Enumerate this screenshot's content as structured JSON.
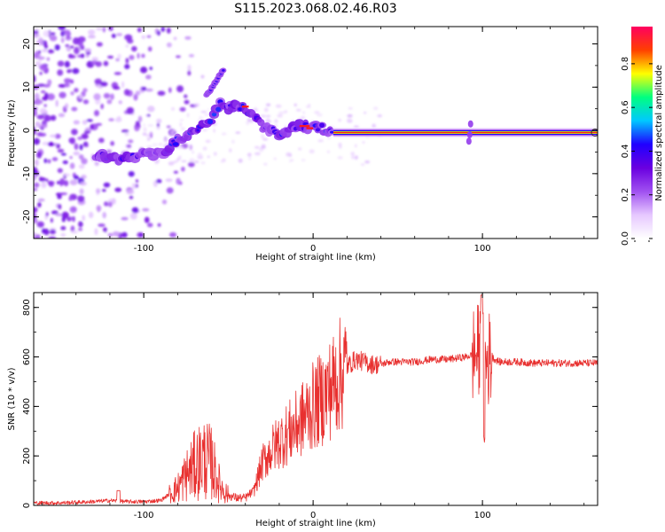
{
  "title": "S115.2023.068.02.46.R03",
  "colors": {
    "snr_line": "#e8302f",
    "ridge_core": "#ff1a1a",
    "colormap": [
      "#ffffff",
      "#e6c8ff",
      "#a050f0",
      "#6a00e0",
      "#2000ff",
      "#00c8ff",
      "#00ff80",
      "#ffff00",
      "#ff4000",
      "#ff0060"
    ]
  },
  "chart_data": [
    {
      "type": "heatmap",
      "name": "spectrogram",
      "xlabel": "Height of straight line (km)",
      "ylabel": "Frequency (Hz)",
      "xlim": [
        -165,
        168
      ],
      "ylim": [
        -25,
        24
      ],
      "xticks": [
        -100,
        0,
        100
      ],
      "yticks": [
        -20,
        -10,
        0,
        10,
        20
      ],
      "grid": false,
      "ridge": {
        "x": [
          -125,
          -115,
          -105,
          -95,
          -88,
          -80,
          -72,
          -65,
          -60,
          -55,
          -50,
          -45,
          -40,
          -35,
          -30,
          -25,
          -20,
          -15,
          -10,
          -5,
          0,
          5,
          10,
          20,
          40,
          60,
          80,
          90,
          93,
          96,
          110,
          130,
          150,
          168
        ],
        "y": [
          -6,
          -6.5,
          -6,
          -5.5,
          -5,
          -2,
          -0.5,
          1,
          3,
          6,
          5,
          5.5,
          5,
          3,
          1,
          0,
          -1,
          0,
          1,
          1,
          0.5,
          0.5,
          -0.5,
          -0.5,
          -0.5,
          -0.5,
          -0.5,
          -1,
          1,
          -0.5,
          -0.5,
          -0.5,
          -0.5,
          -0.5
        ]
      },
      "branch": {
        "x": [
          -63,
          -58,
          -53
        ],
        "y": [
          8,
          11,
          14
        ]
      },
      "colorbar": {
        "label": "Normalized spectral amplitude",
        "ticks": [
          0.0,
          0.2,
          0.4,
          0.6,
          0.8
        ],
        "range": [
          0,
          0.97
        ]
      }
    },
    {
      "type": "line",
      "name": "snr",
      "xlabel": "Height of straight line (km)",
      "ylabel": "SNR (10 * v/v)",
      "xlim": [
        -165,
        168
      ],
      "ylim": [
        0,
        860
      ],
      "xticks": [
        -100,
        0,
        100
      ],
      "yticks": [
        0,
        200,
        400,
        600,
        800
      ],
      "grid": false,
      "series": [
        {
          "x": [
            -165,
            -150,
            -130,
            -120,
            -110,
            -100,
            -90,
            -80,
            -75,
            -70,
            -65,
            -60,
            -55,
            -50,
            -45,
            -40,
            -35,
            -30,
            -25,
            -20,
            -15,
            -10,
            -5,
            0,
            5,
            10,
            15,
            20,
            25,
            30,
            35,
            40,
            45,
            50,
            60,
            70,
            80,
            90,
            95,
            98,
            100,
            102,
            105,
            110,
            120,
            130,
            140,
            150,
            168
          ],
          "y": [
            10,
            10,
            15,
            20,
            15,
            15,
            20,
            70,
            120,
            160,
            190,
            170,
            80,
            40,
            30,
            30,
            60,
            170,
            220,
            260,
            290,
            320,
            360,
            400,
            430,
            470,
            520,
            560,
            590,
            580,
            570,
            570,
            580,
            580,
            580,
            590,
            590,
            600,
            610,
            620,
            600,
            580,
            600,
            580,
            580,
            575,
            575,
            575,
            575
          ]
        }
      ]
    }
  ]
}
